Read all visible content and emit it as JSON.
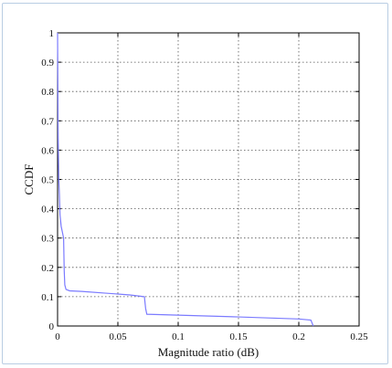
{
  "chart_data": {
    "type": "line",
    "xlabel": "Magnitude ratio (dB)",
    "ylabel": "CCDF",
    "xlim": [
      0,
      0.25
    ],
    "ylim": [
      0,
      1
    ],
    "grid": true,
    "x_ticks": [
      "0",
      "0.05",
      "0.1",
      "0.15",
      "0.2",
      "0.25"
    ],
    "y_ticks": [
      "0",
      "0.1",
      "0.2",
      "0.3",
      "0.4",
      "0.5",
      "0.6",
      "0.7",
      "0.8",
      "0.9",
      "1"
    ],
    "line_color": "#7b7bff",
    "series": [
      {
        "x": [
          0,
          0.0005,
          0.001,
          0.0015,
          0.002,
          0.003,
          0.004,
          0.005,
          0.0055,
          0.006,
          0.007,
          0.01,
          0.02,
          0.04,
          0.06,
          0.072,
          0.073,
          0.074,
          0.1,
          0.15,
          0.2,
          0.21,
          0.211,
          0.212
        ],
        "y": [
          1,
          0.64,
          0.5,
          0.45,
          0.38,
          0.34,
          0.32,
          0.3,
          0.19,
          0.14,
          0.125,
          0.12,
          0.118,
          0.112,
          0.106,
          0.1,
          0.06,
          0.04,
          0.037,
          0.031,
          0.024,
          0.02,
          0.01,
          0
        ]
      }
    ]
  }
}
